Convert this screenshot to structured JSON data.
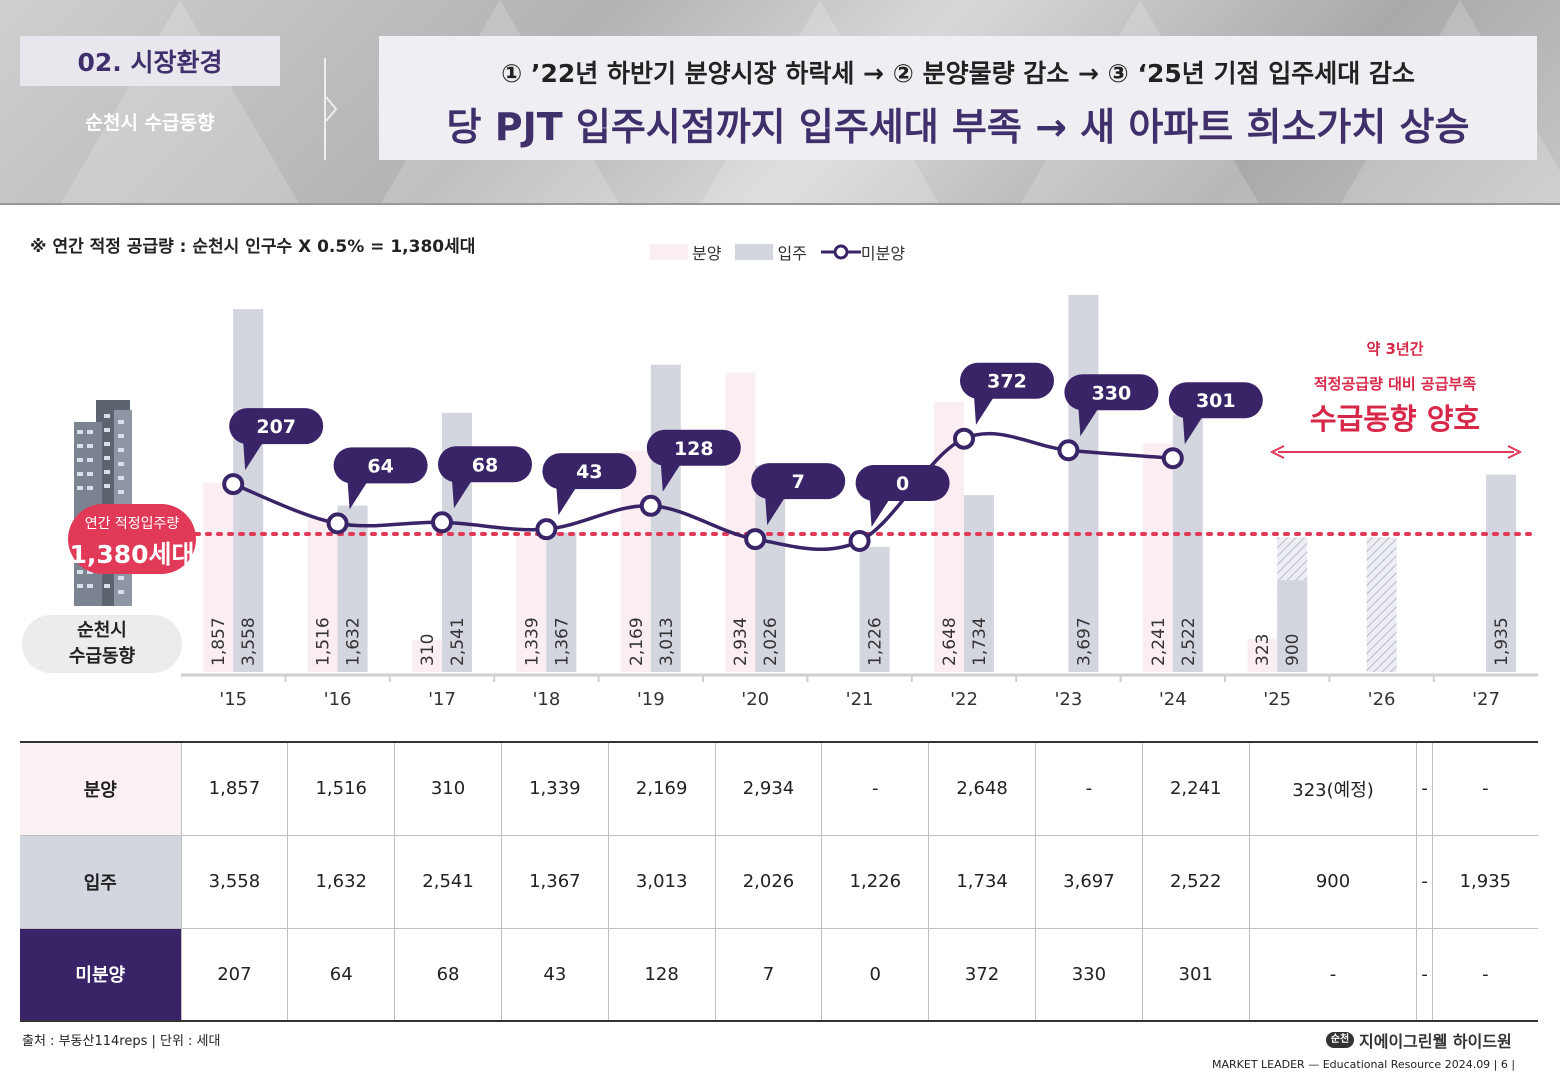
{
  "header": {
    "section": "02. 시장환경",
    "subtitle": "순천시 수급동향",
    "line1": "① ’22년 하반기 분양시장 하락세  → ② 분양물량 감소 → ③ ‘25년 기점 입주세대 감소",
    "line2": "당 PJT 입주시점까지 입주세대 부족 → 새 아파트 희소가치 상승"
  },
  "note": "※ 연간 적정 공급량 : 순천시 인구수 X 0.5% = 1,380세대",
  "legend": {
    "sale": "분양",
    "move": "입주",
    "unsold": "미분양"
  },
  "badge": {
    "line1": "연간 적정입주량",
    "line2": "1,380세대"
  },
  "city_pill": {
    "line1": "순천시",
    "line2": "수급동향"
  },
  "annotation": {
    "line1": "약 3년간",
    "line2": "적정공급량 대비 공급부족",
    "line3": "수급동향 양호"
  },
  "colors": {
    "sale": "#fbeef2",
    "move": "#d3d6df",
    "unsold": "#3a2468",
    "reference": "#e03a58",
    "accent": "#3f2f6b"
  },
  "chart_data": {
    "type": "bar",
    "categories": [
      "'15",
      "'16",
      "'17",
      "'18",
      "'19",
      "'20",
      "'21",
      "'22",
      "'23",
      "'24",
      "'25",
      "'26",
      "'27"
    ],
    "series": [
      {
        "name": "분양",
        "type": "bar",
        "values": [
          1857,
          1516,
          310,
          1339,
          2169,
          2934,
          null,
          2648,
          null,
          2241,
          323,
          null,
          null
        ],
        "labels": [
          "1,857",
          "1,516",
          "310",
          "1,339",
          "2,169",
          "2,934",
          "",
          "2,648",
          "",
          "2,241",
          "323",
          "",
          ""
        ]
      },
      {
        "name": "입주",
        "type": "bar",
        "values": [
          3558,
          1632,
          2541,
          1367,
          3013,
          2026,
          1226,
          1734,
          3697,
          2522,
          900,
          null,
          1935
        ],
        "labels": [
          "3,558",
          "1,632",
          "2,541",
          "1,367",
          "3,013",
          "2,026",
          "1,226",
          "1,734",
          "3,697",
          "2,522",
          "900",
          "",
          "1,935"
        ]
      },
      {
        "name": "미분양",
        "type": "line",
        "values": [
          207,
          64,
          68,
          43,
          128,
          7,
          0,
          372,
          330,
          301,
          null,
          null,
          null
        ],
        "labels": [
          "207",
          "64",
          "68",
          "43",
          "128",
          "7",
          "0",
          "372",
          "330",
          "301",
          "",
          "",
          ""
        ]
      }
    ],
    "reference_line": 1380,
    "ylim": [
      0,
      3800
    ]
  },
  "table": {
    "rows": [
      {
        "header": "분양",
        "cells": [
          "1,857",
          "1,516",
          "310",
          "1,339",
          "2,169",
          "2,934",
          "-",
          "2,648",
          "-",
          "2,241",
          "323(예정)",
          "-",
          "-"
        ]
      },
      {
        "header": "입주",
        "cells": [
          "3,558",
          "1,632",
          "2,541",
          "1,367",
          "3,013",
          "2,026",
          "1,226",
          "1,734",
          "3,697",
          "2,522",
          "900",
          "-",
          "1,935"
        ]
      },
      {
        "header": "미분양",
        "cells": [
          "207",
          "64",
          "68",
          "43",
          "128",
          "7",
          "0",
          "372",
          "330",
          "301",
          "-",
          "-",
          "-"
        ]
      }
    ]
  },
  "source": "출처 :  부동산114reps  |  단위 : 세대",
  "brand": {
    "badge": "순천",
    "name": "지에이그린웰 하이드원"
  },
  "footer": "MARKET LEADER — Educational Resource 2024.09  | 6 |"
}
